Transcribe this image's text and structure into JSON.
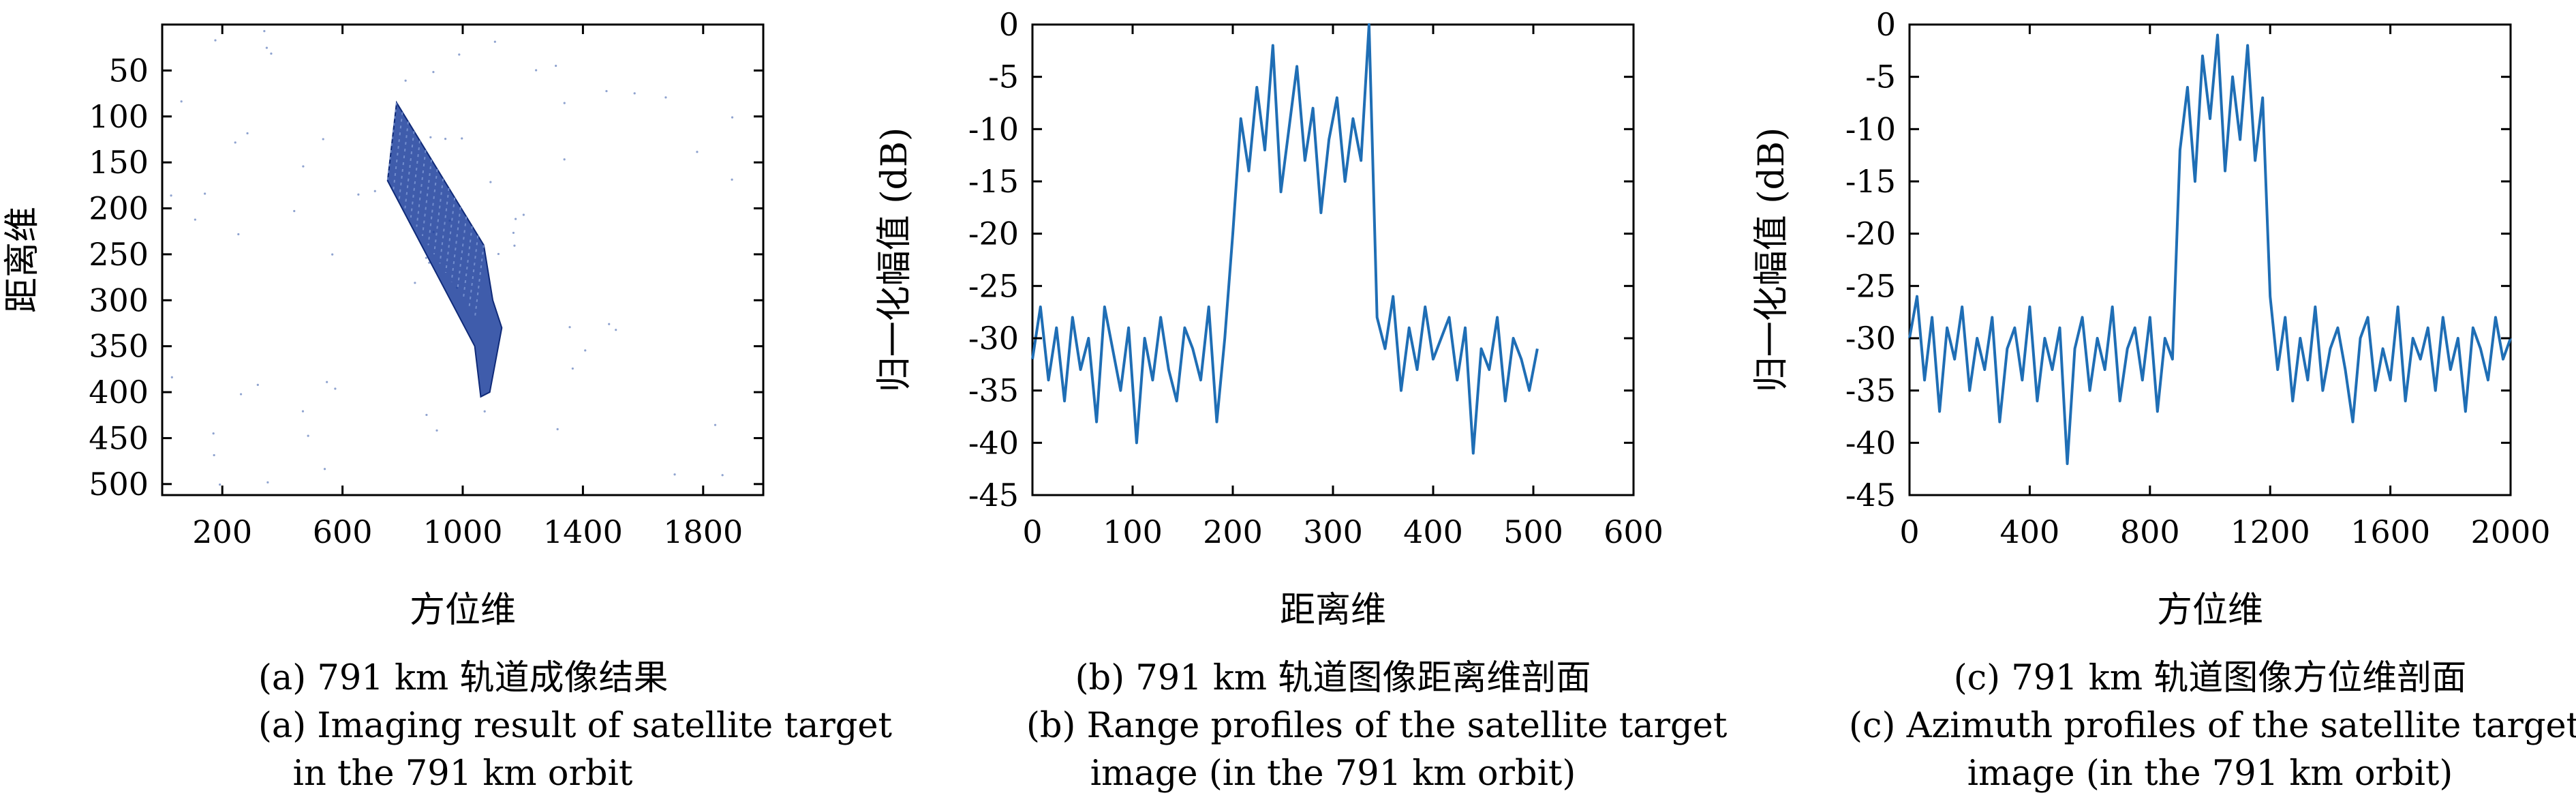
{
  "chart_data": [
    {
      "type": "image",
      "title": "",
      "xlabel": "方位维",
      "ylabel": "距离维",
      "xlim": [
        0,
        2000
      ],
      "ylim": [
        0,
        512
      ],
      "y_inverted": true,
      "xticks": [
        200,
        600,
        1000,
        1400,
        1800
      ],
      "yticks": [
        50,
        100,
        150,
        200,
        250,
        300,
        350,
        400,
        450,
        500
      ],
      "target_outline": [
        [
          780,
          85
        ],
        [
          1070,
          240
        ],
        [
          1100,
          300
        ],
        [
          1130,
          330
        ],
        [
          1090,
          400
        ],
        [
          1060,
          405
        ],
        [
          1040,
          350
        ],
        [
          750,
          170
        ]
      ],
      "caption_cn": "(a) 791 km 轨道成像结果",
      "caption_en_line1": "(a) Imaging result of satellite target",
      "caption_en_line2": "in the 791 km orbit"
    },
    {
      "type": "line",
      "title": "",
      "xlabel": "距离维",
      "ylabel": "归一化幅值 (dB)",
      "xlim": [
        0,
        600
      ],
      "ylim": [
        -45,
        0
      ],
      "xticks": [
        0,
        100,
        200,
        300,
        400,
        500,
        600
      ],
      "yticks": [
        0,
        -5,
        -10,
        -15,
        -20,
        -25,
        -30,
        -35,
        -40,
        -45
      ],
      "color": "#1f6eb5",
      "series": [
        {
          "name": "range profile",
          "x_start": 0,
          "x_step": 8,
          "values": [
            -32,
            -27,
            -34,
            -29,
            -36,
            -28,
            -33,
            -30,
            -38,
            -27,
            -31,
            -35,
            -29,
            -40,
            -30,
            -34,
            -28,
            -33,
            -36,
            -29,
            -31,
            -34,
            -27,
            -38,
            -30,
            -20,
            -9,
            -14,
            -6,
            -12,
            -2,
            -16,
            -10,
            -4,
            -13,
            -8,
            -18,
            -11,
            -7,
            -15,
            -9,
            -13,
            0,
            -28,
            -31,
            -26,
            -35,
            -29,
            -33,
            -27,
            -32,
            -30,
            -28,
            -34,
            -29,
            -41,
            -31,
            -33,
            -28,
            -36,
            -30,
            -32,
            -35,
            -31
          ]
        }
      ],
      "caption_cn": "(b) 791 km 轨道图像距离维剖面",
      "caption_en_line1": "(b) Range profiles of the satellite target",
      "caption_en_line2": "image (in the 791 km orbit)"
    },
    {
      "type": "line",
      "title": "",
      "xlabel": "方位维",
      "ylabel": "归一化幅值 (dB)",
      "xlim": [
        0,
        2000
      ],
      "ylim": [
        -45,
        0
      ],
      "xticks": [
        0,
        400,
        800,
        1200,
        1600,
        2000
      ],
      "yticks": [
        0,
        -5,
        -10,
        -15,
        -20,
        -25,
        -30,
        -35,
        -40,
        -45
      ],
      "color": "#1f6eb5",
      "series": [
        {
          "name": "azimuth profile",
          "x_start": 0,
          "x_step": 25,
          "values": [
            -30,
            -26,
            -34,
            -28,
            -37,
            -29,
            -32,
            -27,
            -35,
            -30,
            -33,
            -28,
            -38,
            -31,
            -29,
            -34,
            -27,
            -36,
            -30,
            -33,
            -29,
            -42,
            -31,
            -28,
            -35,
            -30,
            -33,
            -27,
            -36,
            -31,
            -29,
            -34,
            -28,
            -37,
            -30,
            -32,
            -12,
            -6,
            -15,
            -3,
            -9,
            -1,
            -14,
            -5,
            -11,
            -2,
            -13,
            -7,
            -26,
            -33,
            -28,
            -36,
            -30,
            -34,
            -27,
            -35,
            -31,
            -29,
            -33,
            -38,
            -30,
            -28,
            -35,
            -31,
            -34,
            -27,
            -36,
            -30,
            -32,
            -29,
            -35,
            -28,
            -33,
            -30,
            -37,
            -29,
            -31,
            -34,
            -28,
            -32,
            -30
          ]
        }
      ],
      "caption_cn": "(c) 791 km 轨道图像方位维剖面",
      "caption_en_line1": "(c) Azimuth profiles of the satellite target",
      "caption_en_line2": "image (in the 791 km orbit)"
    }
  ]
}
